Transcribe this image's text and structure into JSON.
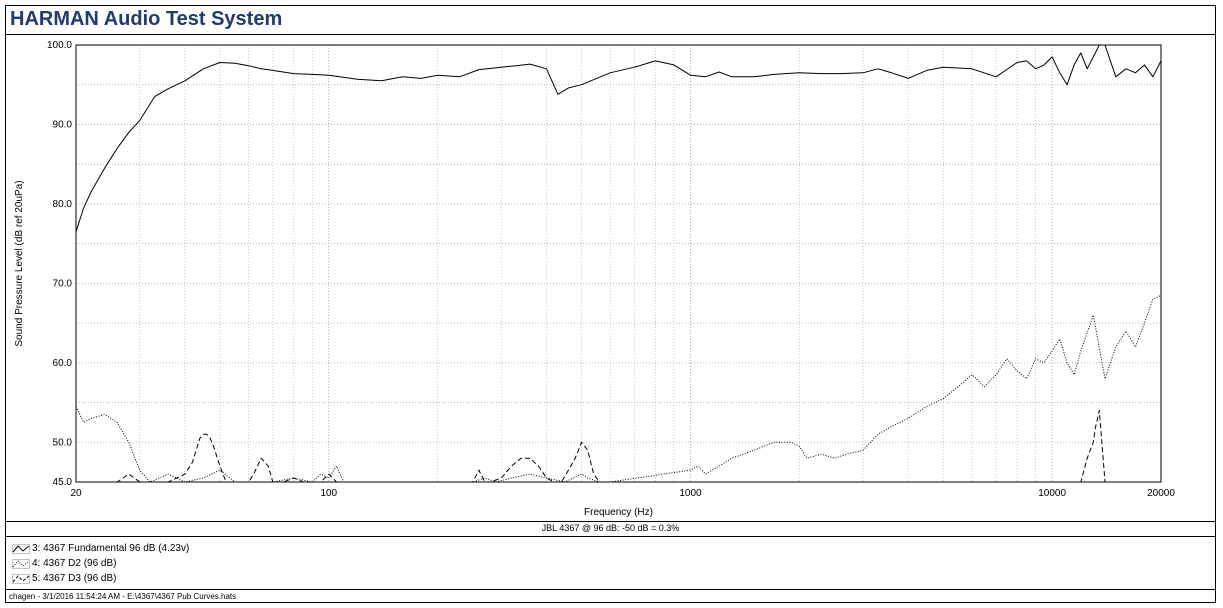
{
  "app_title": "HARMAN Audio Test System",
  "chart_data": {
    "type": "line",
    "xlabel": "Frequency (Hz)",
    "ylabel": "Sound Pressure Level (dB ref 20uPa)",
    "xscale": "log",
    "xlim": [
      20,
      20000
    ],
    "ylim": [
      45,
      100
    ],
    "grid": true,
    "x_ticks": [
      "20",
      "100",
      "1000",
      "10000",
      "20000"
    ],
    "y_ticks": [
      "100.0",
      "90.0",
      "80.0",
      "70.0",
      "60.0",
      "50.0",
      "45.0"
    ],
    "caption": "JBL 4367 @ 96 dB: -50 dB = 0.3%",
    "series": [
      {
        "name": "3: 4367 Fundamental  96 dB (4.23v)",
        "style": "solid",
        "x": [
          20,
          21,
          22,
          24,
          26,
          28,
          30,
          33,
          36,
          40,
          45,
          50,
          55,
          60,
          65,
          70,
          80,
          90,
          100,
          120,
          140,
          160,
          180,
          200,
          230,
          260,
          300,
          330,
          360,
          400,
          430,
          460,
          500,
          550,
          600,
          700,
          800,
          900,
          1000,
          1100,
          1200,
          1300,
          1500,
          1700,
          2000,
          2300,
          2600,
          3000,
          3300,
          3600,
          4000,
          4500,
          5000,
          6000,
          7000,
          8000,
          8500,
          9000,
          9500,
          10000,
          10500,
          11000,
          11500,
          12000,
          12500,
          13000,
          13500,
          14000,
          15000,
          16000,
          17000,
          18000,
          19000,
          20000
        ],
        "values": [
          76.5,
          79.5,
          81.5,
          84.5,
          87.0,
          89.0,
          90.5,
          93.5,
          94.5,
          95.5,
          97.0,
          97.8,
          97.7,
          97.4,
          97.0,
          96.8,
          96.4,
          96.3,
          96.2,
          95.7,
          95.5,
          96.0,
          95.8,
          96.2,
          96.0,
          96.9,
          97.2,
          97.4,
          97.6,
          97.0,
          93.8,
          94.6,
          95.0,
          95.8,
          96.5,
          97.2,
          98.0,
          97.5,
          96.2,
          96.0,
          96.6,
          96.0,
          96.0,
          96.3,
          96.5,
          96.4,
          96.4,
          96.5,
          97.0,
          96.5,
          95.8,
          96.8,
          97.2,
          97.0,
          96.0,
          97.8,
          98.0,
          97.0,
          97.5,
          98.5,
          96.5,
          95.0,
          97.5,
          99.0,
          97.0,
          98.5,
          100.0,
          100.0,
          96.0,
          97.0,
          96.5,
          97.5,
          96.0,
          98.0
        ]
      },
      {
        "name": "4: 4367 D2 (96 dB)",
        "style": "dotted",
        "x": [
          20,
          21,
          22,
          24,
          26,
          28,
          30,
          32,
          34,
          36,
          40,
          45,
          50,
          55,
          60,
          65,
          70,
          80,
          90,
          95,
          100,
          105,
          110,
          250,
          270,
          290,
          320,
          360,
          400,
          450,
          500,
          520,
          560,
          600,
          1000,
          1050,
          1100,
          1200,
          1300,
          1400,
          1500,
          1700,
          1900,
          2000,
          2100,
          2300,
          2500,
          2700,
          3000,
          3300,
          3600,
          4000,
          4500,
          5000,
          5500,
          6000,
          6500,
          7000,
          7500,
          8000,
          8500,
          9000,
          9500,
          10000,
          10500,
          11000,
          11500,
          12000,
          13000,
          14000,
          15000,
          16000,
          17000,
          18000,
          19000,
          20000
        ],
        "values": [
          54.5,
          52.5,
          53.0,
          53.5,
          52.5,
          50.0,
          46.5,
          45.0,
          45.5,
          46.0,
          45.0,
          45.5,
          46.5,
          45.0,
          45.0,
          45.0,
          45.0,
          45.5,
          45.0,
          46.0,
          45.5,
          47.0,
          45.0,
          45.0,
          45.5,
          45.0,
          45.5,
          46.0,
          45.5,
          45.0,
          46.0,
          45.5,
          45.0,
          45.0,
          46.5,
          47.0,
          46.0,
          47.0,
          48.0,
          48.5,
          49.0,
          50.0,
          50.0,
          49.5,
          48.0,
          48.5,
          48.0,
          48.5,
          49.0,
          51.0,
          52.0,
          53.0,
          54.5,
          55.5,
          57.0,
          58.5,
          57.0,
          58.5,
          60.5,
          59.0,
          58.0,
          60.5,
          60.0,
          61.5,
          63.0,
          60.0,
          58.5,
          61.5,
          66.0,
          58.0,
          62.0,
          64.0,
          62.0,
          65.0,
          68.0,
          68.5
        ]
      },
      {
        "name": "5: 4367 D3 (96 dB)",
        "style": "dashed",
        "x": [
          20,
          26,
          27,
          28,
          29,
          30,
          36,
          38,
          40,
          42,
          43,
          44,
          45,
          46,
          47,
          48,
          50,
          52,
          54,
          56,
          60,
          62,
          65,
          68,
          70,
          72,
          75,
          80,
          85,
          90,
          95,
          100,
          105,
          110,
          250,
          260,
          270,
          280,
          300,
          320,
          340,
          360,
          380,
          400,
          420,
          440,
          460,
          480,
          500,
          520,
          540,
          560,
          580,
          600,
          12000,
          12500,
          13000,
          13200,
          13500,
          14000
        ],
        "values": [
          45.0,
          45.0,
          45.5,
          46.0,
          45.5,
          45.0,
          45.0,
          45.5,
          46.0,
          47.5,
          49.0,
          50.5,
          51.0,
          51.0,
          50.5,
          49.5,
          47.0,
          45.0,
          45.0,
          45.0,
          45.0,
          46.0,
          48.0,
          47.0,
          45.0,
          45.0,
          45.0,
          45.5,
          45.0,
          45.0,
          45.0,
          46.0,
          45.0,
          45.0,
          45.0,
          46.5,
          45.0,
          45.0,
          45.5,
          47.0,
          48.0,
          48.0,
          47.0,
          45.5,
          45.0,
          45.0,
          46.5,
          48.0,
          50.0,
          49.0,
          46.0,
          45.0,
          45.0,
          45.0,
          45.0,
          48.0,
          50.0,
          52.0,
          54.0,
          45.0
        ]
      }
    ]
  },
  "status_line": "chagen - 3/1/2016 11:54:24 AM - E:\\4367\\4367 Pub Curves.hats"
}
